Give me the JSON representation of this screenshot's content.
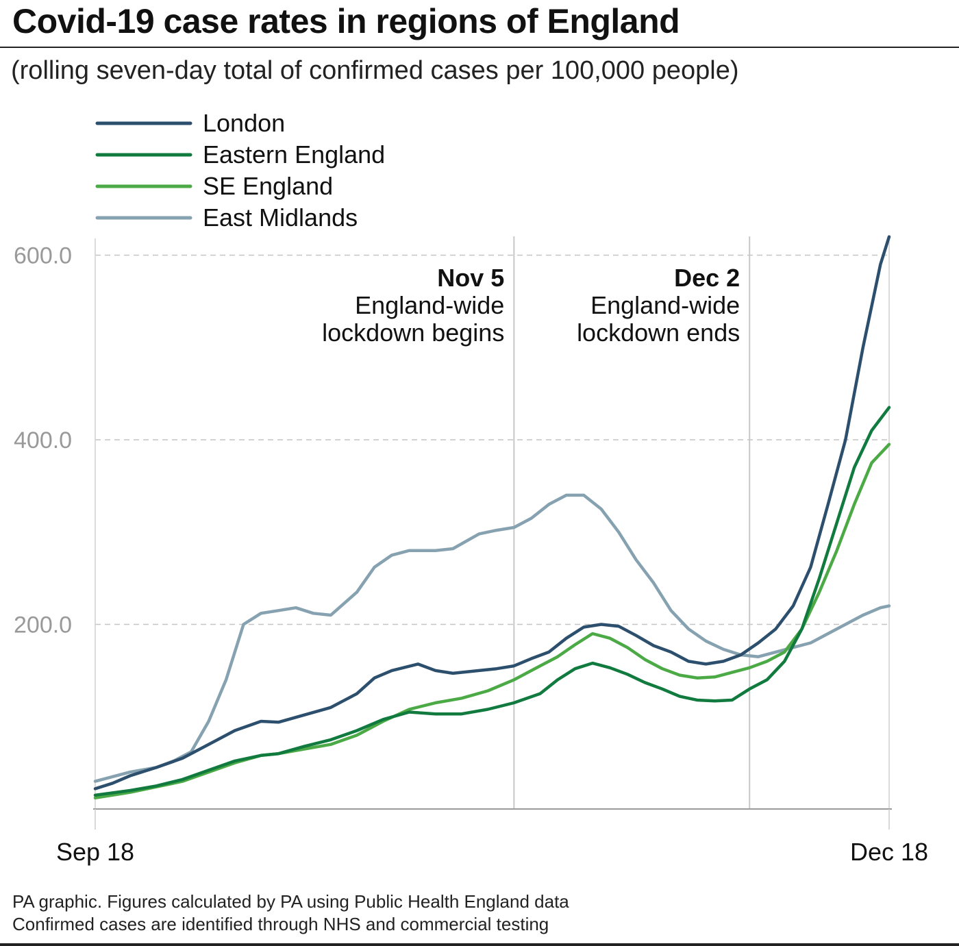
{
  "header": {
    "title": "Covid-19 case rates in regions of England",
    "subtitle": "(rolling seven-day total of confirmed cases per 100,000 people)"
  },
  "footer": {
    "line1": "PA graphic. Figures calculated by PA using Public Health England data",
    "line2": "Confirmed cases are identified through NHS and commercial testing"
  },
  "chart_data": {
    "type": "line",
    "x_start": "Sep 18",
    "x_end": "Dec 18",
    "x_tick_labels": [
      "Sep 18",
      "Dec 18"
    ],
    "y_ticks": [
      "200.0",
      "400.0",
      "600.0"
    ],
    "ylim": [
      0,
      620
    ],
    "xlim": [
      "Sep 18",
      "Dec 18"
    ],
    "grid": "horizontal dashed at 200, 400, 600",
    "legend_position": "top-left",
    "annotations": [
      {
        "date": "Nov 5",
        "title": "Nov 5",
        "line1": "England-wide",
        "line2": "lockdown begins"
      },
      {
        "date": "Dec 2",
        "title": "Dec 2",
        "line1": "England-wide",
        "line2": "lockdown ends"
      }
    ],
    "series": [
      {
        "name": "London",
        "color": "#2d4f6e",
        "points": [
          [
            "Sep 18",
            22
          ],
          [
            "Sep 20",
            28
          ],
          [
            "Sep 22",
            36
          ],
          [
            "Sep 25",
            45
          ],
          [
            "Sep 28",
            55
          ],
          [
            "Oct 1",
            70
          ],
          [
            "Oct 4",
            85
          ],
          [
            "Oct 7",
            95
          ],
          [
            "Oct 9",
            94
          ],
          [
            "Oct 12",
            102
          ],
          [
            "Oct 15",
            110
          ],
          [
            "Oct 18",
            125
          ],
          [
            "Oct 20",
            142
          ],
          [
            "Oct 22",
            150
          ],
          [
            "Oct 25",
            157
          ],
          [
            "Oct 27",
            150
          ],
          [
            "Oct 29",
            147
          ],
          [
            "Nov 1",
            150
          ],
          [
            "Nov 3",
            152
          ],
          [
            "Nov 5",
            155
          ],
          [
            "Nov 7",
            163
          ],
          [
            "Nov 9",
            170
          ],
          [
            "Nov 11",
            185
          ],
          [
            "Nov 13",
            197
          ],
          [
            "Nov 15",
            200
          ],
          [
            "Nov 17",
            198
          ],
          [
            "Nov 19",
            188
          ],
          [
            "Nov 21",
            177
          ],
          [
            "Nov 23",
            170
          ],
          [
            "Nov 25",
            160
          ],
          [
            "Nov 27",
            157
          ],
          [
            "Nov 29",
            160
          ],
          [
            "Dec 1",
            167
          ],
          [
            "Dec 3",
            180
          ],
          [
            "Dec 5",
            195
          ],
          [
            "Dec 7",
            220
          ],
          [
            "Dec 9",
            262
          ],
          [
            "Dec 11",
            330
          ],
          [
            "Dec 13",
            400
          ],
          [
            "Dec 15",
            500
          ],
          [
            "Dec 17",
            590
          ],
          [
            "Dec 18",
            620
          ]
        ]
      },
      {
        "name": "Eastern England",
        "color": "#117a3e",
        "points": [
          [
            "Sep 18",
            15
          ],
          [
            "Sep 22",
            20
          ],
          [
            "Sep 25",
            25
          ],
          [
            "Sep 28",
            32
          ],
          [
            "Oct 1",
            42
          ],
          [
            "Oct 4",
            52
          ],
          [
            "Oct 7",
            58
          ],
          [
            "Oct 9",
            60
          ],
          [
            "Oct 12",
            68
          ],
          [
            "Oct 15",
            75
          ],
          [
            "Oct 18",
            85
          ],
          [
            "Oct 21",
            97
          ],
          [
            "Oct 24",
            105
          ],
          [
            "Oct 27",
            103
          ],
          [
            "Oct 30",
            103
          ],
          [
            "Nov 2",
            108
          ],
          [
            "Nov 5",
            115
          ],
          [
            "Nov 8",
            125
          ],
          [
            "Nov 10",
            140
          ],
          [
            "Nov 12",
            152
          ],
          [
            "Nov 14",
            158
          ],
          [
            "Nov 16",
            153
          ],
          [
            "Nov 18",
            146
          ],
          [
            "Nov 20",
            137
          ],
          [
            "Nov 22",
            130
          ],
          [
            "Nov 24",
            122
          ],
          [
            "Nov 26",
            118
          ],
          [
            "Nov 28",
            117
          ],
          [
            "Nov 30",
            118
          ],
          [
            "Dec 2",
            130
          ],
          [
            "Dec 4",
            140
          ],
          [
            "Dec 6",
            160
          ],
          [
            "Dec 8",
            195
          ],
          [
            "Dec 10",
            250
          ],
          [
            "Dec 12",
            310
          ],
          [
            "Dec 14",
            370
          ],
          [
            "Dec 16",
            410
          ],
          [
            "Dec 18",
            435
          ]
        ]
      },
      {
        "name": "SE England",
        "color": "#4caa46",
        "points": [
          [
            "Sep 18",
            12
          ],
          [
            "Sep 22",
            18
          ],
          [
            "Sep 25",
            24
          ],
          [
            "Sep 28",
            30
          ],
          [
            "Oct 1",
            40
          ],
          [
            "Oct 4",
            50
          ],
          [
            "Oct 7",
            58
          ],
          [
            "Oct 9",
            60
          ],
          [
            "Oct 12",
            65
          ],
          [
            "Oct 15",
            70
          ],
          [
            "Oct 18",
            80
          ],
          [
            "Oct 21",
            95
          ],
          [
            "Oct 24",
            108
          ],
          [
            "Oct 27",
            115
          ],
          [
            "Oct 30",
            120
          ],
          [
            "Nov 2",
            128
          ],
          [
            "Nov 5",
            140
          ],
          [
            "Nov 8",
            155
          ],
          [
            "Nov 10",
            165
          ],
          [
            "Nov 12",
            178
          ],
          [
            "Nov 14",
            190
          ],
          [
            "Nov 16",
            185
          ],
          [
            "Nov 18",
            175
          ],
          [
            "Nov 20",
            162
          ],
          [
            "Nov 22",
            152
          ],
          [
            "Nov 24",
            145
          ],
          [
            "Nov 26",
            142
          ],
          [
            "Nov 28",
            143
          ],
          [
            "Nov 30",
            148
          ],
          [
            "Dec 2",
            153
          ],
          [
            "Dec 4",
            160
          ],
          [
            "Dec 6",
            170
          ],
          [
            "Dec 8",
            195
          ],
          [
            "Dec 10",
            235
          ],
          [
            "Dec 12",
            280
          ],
          [
            "Dec 14",
            330
          ],
          [
            "Dec 16",
            375
          ],
          [
            "Dec 18",
            395
          ]
        ]
      },
      {
        "name": "East Midlands",
        "color": "#86a1b0",
        "points": [
          [
            "Sep 18",
            30
          ],
          [
            "Sep 20",
            35
          ],
          [
            "Sep 22",
            40
          ],
          [
            "Sep 25",
            45
          ],
          [
            "Sep 27",
            52
          ],
          [
            "Sep 29",
            62
          ],
          [
            "Oct 1",
            95
          ],
          [
            "Oct 3",
            140
          ],
          [
            "Oct 5",
            200
          ],
          [
            "Oct 7",
            212
          ],
          [
            "Oct 9",
            215
          ],
          [
            "Oct 11",
            218
          ],
          [
            "Oct 13",
            212
          ],
          [
            "Oct 15",
            210
          ],
          [
            "Oct 18",
            235
          ],
          [
            "Oct 20",
            262
          ],
          [
            "Oct 22",
            275
          ],
          [
            "Oct 24",
            280
          ],
          [
            "Oct 27",
            280
          ],
          [
            "Oct 29",
            282
          ],
          [
            "Nov 1",
            298
          ],
          [
            "Nov 3",
            302
          ],
          [
            "Nov 5",
            305
          ],
          [
            "Nov 7",
            315
          ],
          [
            "Nov 9",
            330
          ],
          [
            "Nov 11",
            340
          ],
          [
            "Nov 13",
            340
          ],
          [
            "Nov 15",
            325
          ],
          [
            "Nov 17",
            300
          ],
          [
            "Nov 19",
            270
          ],
          [
            "Nov 21",
            245
          ],
          [
            "Nov 23",
            215
          ],
          [
            "Nov 25",
            195
          ],
          [
            "Nov 27",
            182
          ],
          [
            "Nov 29",
            173
          ],
          [
            "Dec 1",
            167
          ],
          [
            "Dec 3",
            165
          ],
          [
            "Dec 5",
            170
          ],
          [
            "Dec 7",
            175
          ],
          [
            "Dec 9",
            180
          ],
          [
            "Dec 11",
            190
          ],
          [
            "Dec 13",
            200
          ],
          [
            "Dec 15",
            210
          ],
          [
            "Dec 17",
            218
          ],
          [
            "Dec 18",
            220
          ]
        ]
      }
    ]
  }
}
